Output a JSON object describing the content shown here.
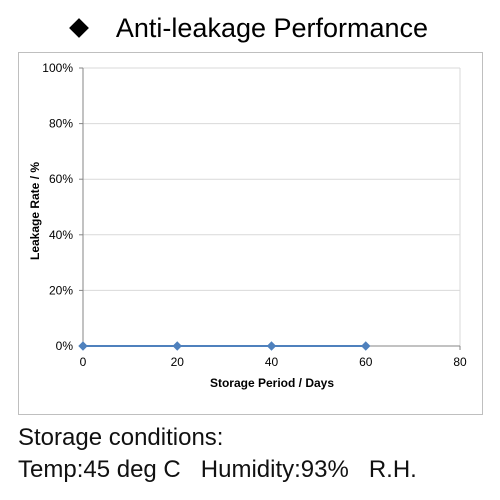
{
  "heading": {
    "bullet_icon": "diamond-icon",
    "title": "Anti-leakage Performance"
  },
  "chart_data": {
    "type": "line",
    "title": "Anti-leakage Performance",
    "xlabel": "Storage Period / Days",
    "ylabel": "Leakage Rate / %",
    "xlim": [
      0,
      80
    ],
    "ylim": [
      0,
      100
    ],
    "x_ticks": [
      0,
      20,
      40,
      60,
      80
    ],
    "x_tick_labels": [
      "0",
      "20",
      "40",
      "60",
      "80"
    ],
    "y_ticks": [
      0,
      20,
      40,
      60,
      80,
      100
    ],
    "y_tick_labels": [
      "0%",
      "20%",
      "40%",
      "60%",
      "80%",
      "100%"
    ],
    "grid": "horizontal",
    "legend": "none",
    "series": [
      {
        "x": [
          0,
          20,
          40,
          60
        ],
        "y": [
          0,
          0,
          0,
          0
        ],
        "color": "#4f81bd",
        "marker": "diamond"
      }
    ]
  },
  "captions": {
    "line1": "Storage conditions:",
    "line2": "Temp:45 deg C   Humidity:93%   R.H."
  },
  "colors": {
    "series": "#4f81bd",
    "grid": "#d9d9d9",
    "axis": "#868686",
    "watermark": "#ececec"
  }
}
